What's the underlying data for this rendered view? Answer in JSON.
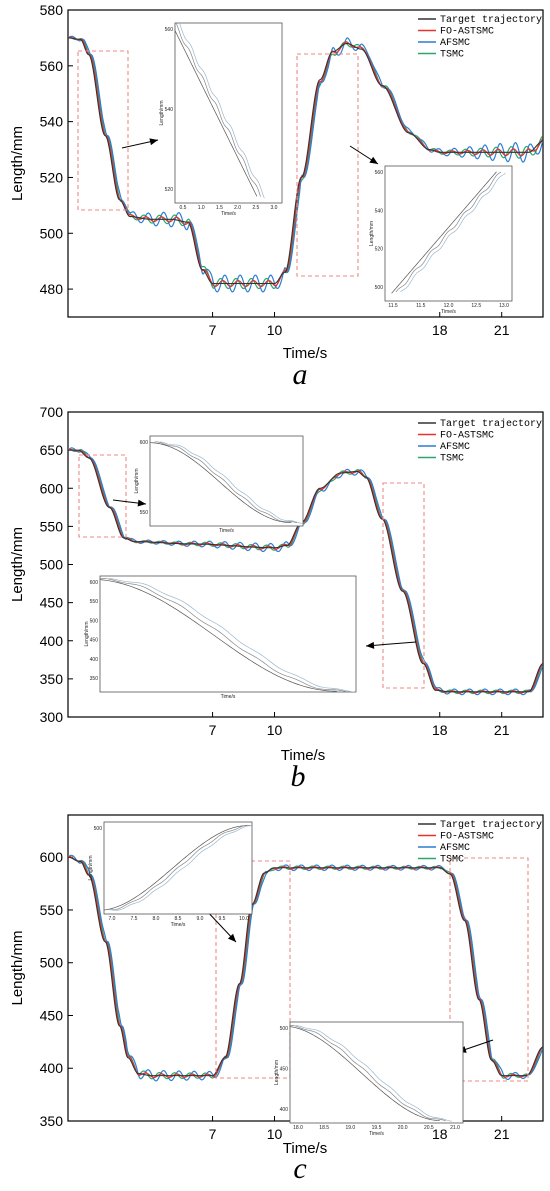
{
  "chart_data": [
    {
      "type": "line",
      "panel_label": "a",
      "xlabel": "Time/s",
      "ylabel": "Length/mm",
      "xlim": [
        0,
        23
      ],
      "ylim": [
        470,
        580
      ],
      "xticks": [
        7,
        10,
        18,
        21
      ],
      "yticks": [
        480,
        500,
        520,
        540,
        560,
        580
      ],
      "legend_position": "top-right",
      "series": [
        {
          "name": "Target trajectory",
          "color": "#333333"
        },
        {
          "name": "FO-ASTSMC",
          "color": "#e8312a"
        },
        {
          "name": "AFSMC",
          "color": "#2a7fd4"
        },
        {
          "name": "TSMC",
          "color": "#2aa86b"
        }
      ],
      "trajectory": [
        [
          0,
          570
        ],
        [
          0.6,
          569.5
        ],
        [
          1,
          564
        ],
        [
          1.8,
          535
        ],
        [
          2.5,
          512
        ],
        [
          3,
          506
        ],
        [
          4,
          505
        ],
        [
          5,
          505
        ],
        [
          5.8,
          504
        ],
        [
          6.5,
          487
        ],
        [
          7,
          482
        ],
        [
          8,
          482
        ],
        [
          9,
          482
        ],
        [
          10,
          482
        ],
        [
          10.5,
          486
        ],
        [
          11.3,
          520
        ],
        [
          12.2,
          555
        ],
        [
          12.8,
          565
        ],
        [
          13.5,
          568
        ],
        [
          14.2,
          566
        ],
        [
          15.2,
          553
        ],
        [
          16.5,
          536
        ],
        [
          17.5,
          530
        ],
        [
          18,
          529
        ],
        [
          21,
          529
        ],
        [
          22.3,
          529
        ],
        [
          23,
          533
        ]
      ],
      "insets": [
        {
          "xticks": [
            "0.5",
            "1.0",
            "1.5",
            "2.0",
            "2.5",
            "3.0"
          ],
          "yticks": [
            "560",
            "540",
            "520"
          ],
          "xlabel": "Time/s",
          "ylabel": "Length/mm"
        },
        {
          "xticks": [
            "11.5",
            "11.5",
            "12.0",
            "12.5",
            "13.0"
          ],
          "yticks": [
            "560",
            "540",
            "520",
            "500"
          ],
          "xlabel": "Time/s",
          "ylabel": "Length/mm"
        }
      ]
    },
    {
      "type": "line",
      "panel_label": "b",
      "xlabel": "Time/s",
      "ylabel": "Length/mm",
      "xlim": [
        0,
        23
      ],
      "ylim": [
        300,
        700
      ],
      "xticks": [
        7,
        10,
        18,
        21
      ],
      "yticks": [
        300,
        350,
        400,
        450,
        500,
        550,
        600,
        650,
        700
      ],
      "legend_position": "top-right",
      "series": [
        {
          "name": "Target trajectory",
          "color": "#333333"
        },
        {
          "name": "FO-ASTSMC",
          "color": "#e8312a"
        },
        {
          "name": "AFSMC",
          "color": "#2a7fd4"
        },
        {
          "name": "TSMC",
          "color": "#2aa86b"
        }
      ],
      "trajectory": [
        [
          0,
          650
        ],
        [
          0.5,
          650
        ],
        [
          1,
          640
        ],
        [
          2,
          575
        ],
        [
          2.7,
          535
        ],
        [
          3.2,
          530
        ],
        [
          6,
          527
        ],
        [
          10,
          522
        ],
        [
          10.6,
          525
        ],
        [
          11.3,
          555
        ],
        [
          12.2,
          600
        ],
        [
          13.2,
          620
        ],
        [
          14,
          622
        ],
        [
          14.4,
          615
        ],
        [
          15.2,
          560
        ],
        [
          16.2,
          465
        ],
        [
          17.2,
          370
        ],
        [
          17.8,
          335
        ],
        [
          18.5,
          333
        ],
        [
          21,
          333
        ],
        [
          22.3,
          333
        ],
        [
          23,
          370
        ]
      ],
      "insets": [
        {
          "xticks": [],
          "yticks": [
            "600",
            "550"
          ],
          "xlabel": "Time/s",
          "ylabel": "Length/mm"
        },
        {
          "xticks": [],
          "yticks": [
            "600",
            "550",
            "500",
            "450",
            "400",
            "350"
          ],
          "xlabel": "Time/s",
          "ylabel": "Length/mm"
        }
      ]
    },
    {
      "type": "line",
      "panel_label": "c",
      "xlabel": "Time/s",
      "ylabel": "Length/mm",
      "xlim": [
        0,
        23
      ],
      "ylim": [
        350,
        640
      ],
      "xticks": [
        7,
        10,
        18,
        21
      ],
      "yticks": [
        350,
        400,
        450,
        500,
        550,
        600
      ],
      "legend_position": "top-right",
      "series": [
        {
          "name": "Target trajectory",
          "color": "#333333"
        },
        {
          "name": "FO-ASTSMC",
          "color": "#e8312a"
        },
        {
          "name": "AFSMC",
          "color": "#2a7fd4"
        },
        {
          "name": "TSMC",
          "color": "#2aa86b"
        }
      ],
      "trajectory": [
        [
          0,
          600
        ],
        [
          0.6,
          596
        ],
        [
          1,
          583
        ],
        [
          1.8,
          520
        ],
        [
          2.5,
          440
        ],
        [
          2.9,
          410
        ],
        [
          3.4,
          395
        ],
        [
          4,
          393
        ],
        [
          7,
          393
        ],
        [
          7.6,
          410
        ],
        [
          8.3,
          480
        ],
        [
          8.9,
          555
        ],
        [
          9.5,
          585
        ],
        [
          10,
          590
        ],
        [
          18,
          590
        ],
        [
          18.5,
          584
        ],
        [
          19.2,
          540
        ],
        [
          19.9,
          465
        ],
        [
          20.5,
          408
        ],
        [
          21,
          393
        ],
        [
          22.2,
          393
        ],
        [
          23,
          420
        ]
      ],
      "insets": [
        {
          "xticks": [
            "7.0",
            "7.5",
            "8.0",
            "8.5",
            "9.0",
            "9.5",
            "10.0"
          ],
          "yticks": [
            "500"
          ],
          "xlabel": "Time/s",
          "ylabel": "Length/mm"
        },
        {
          "xticks": [
            "18.0",
            "18.5",
            "19.0",
            "19.5",
            "20.0",
            "20.5",
            "21.0"
          ],
          "yticks": [
            "500",
            "450",
            "400"
          ],
          "xlabel": "Time/s",
          "ylabel": "Length/mm"
        }
      ]
    }
  ]
}
